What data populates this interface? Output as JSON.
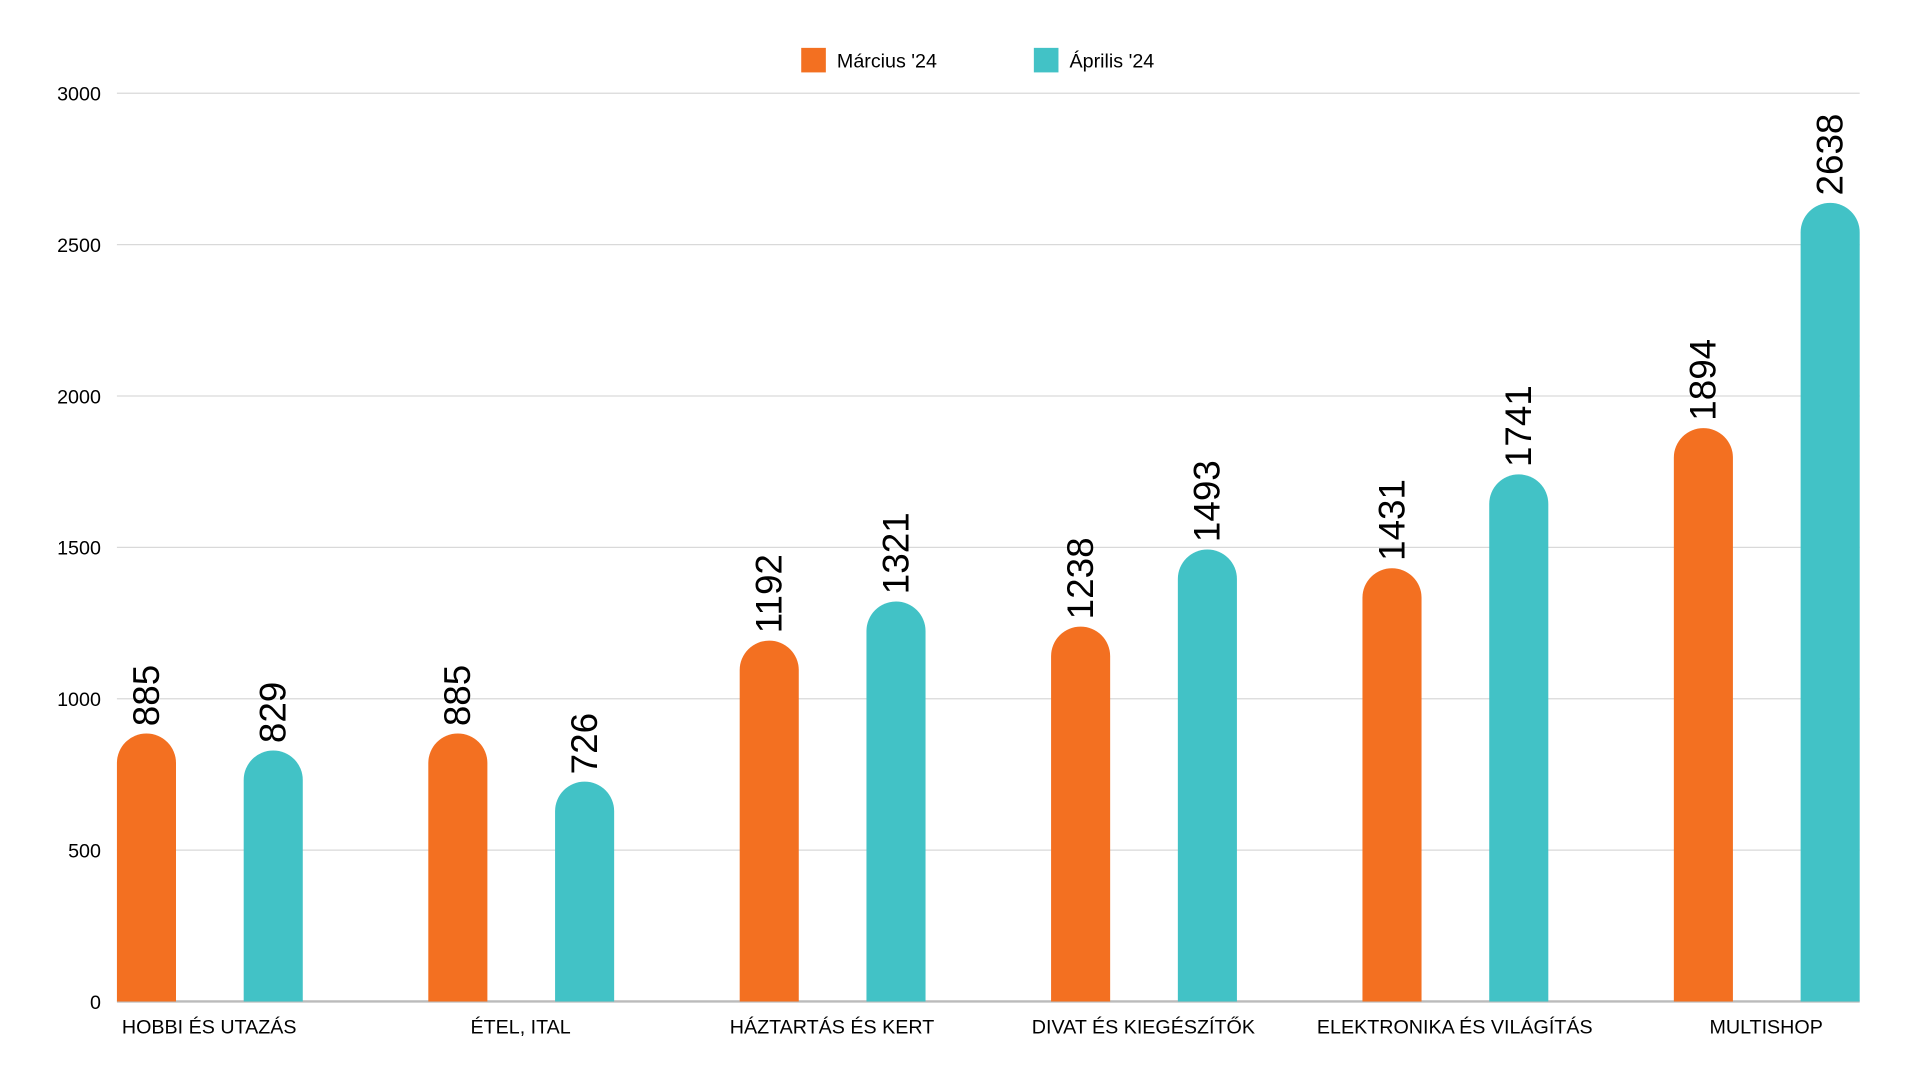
{
  "chart_data": {
    "type": "bar",
    "title": "",
    "xlabel": "",
    "ylabel": "",
    "ylim": [
      0,
      3000
    ],
    "yticks": [
      0,
      500,
      1000,
      1500,
      2000,
      2500,
      3000
    ],
    "grid": true,
    "legend_position": "top-center",
    "categories": [
      "HOBBI ÉS UTAZÁS",
      "ÉTEL, ITAL",
      "HÁZTARTÁS ÉS KERT",
      "DIVAT ÉS KIEGÉSZÍTŐK",
      "ELEKTRONIKA ÉS VILÁGÍTÁS",
      "MULTISHOP"
    ],
    "series": [
      {
        "name": "Március '24",
        "color": "#f37021",
        "values": [
          885,
          885,
          1192,
          1238,
          1431,
          1894
        ]
      },
      {
        "name": "Április '24",
        "color": "#42c2c6",
        "values": [
          829,
          726,
          1321,
          1493,
          1741,
          2638
        ]
      }
    ]
  }
}
